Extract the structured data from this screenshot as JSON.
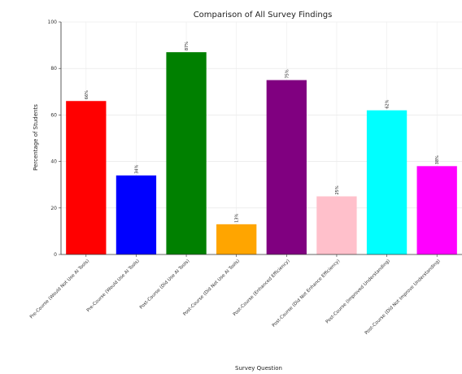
{
  "chart_data": {
    "type": "bar",
    "title": "Comparison of All Survey Findings",
    "xlabel": "Survey Question",
    "ylabel": "Percentage of Students",
    "ylim": [
      0,
      100
    ],
    "yticks": [
      0,
      20,
      40,
      60,
      80,
      100
    ],
    "grid": true,
    "categories": [
      "Pre-Course (Would Not Use AI Tools)",
      "Pre-Course (Would Use AI Tools)",
      "Post-Course (Did Use AI Tools)",
      "Post-Course (Did Not Use AI Tools)",
      "Post-Course (Enhanced Efficiency)",
      "Post-Course (Did Not Enhance Efficiency)",
      "Post-Course (Improved Understanding)",
      "Post-Course (Did Not Improve Understanding)"
    ],
    "values": [
      66,
      34,
      87,
      13,
      75,
      25,
      62,
      38
    ],
    "data_labels": [
      "66%",
      "34%",
      "87%",
      "13%",
      "75%",
      "25%",
      "62%",
      "38%"
    ],
    "colors": [
      "#ff0000",
      "#0000ff",
      "#008000",
      "#ffa500",
      "#800080",
      "#ffc0cb",
      "#00ffff",
      "#ff00ff"
    ]
  }
}
